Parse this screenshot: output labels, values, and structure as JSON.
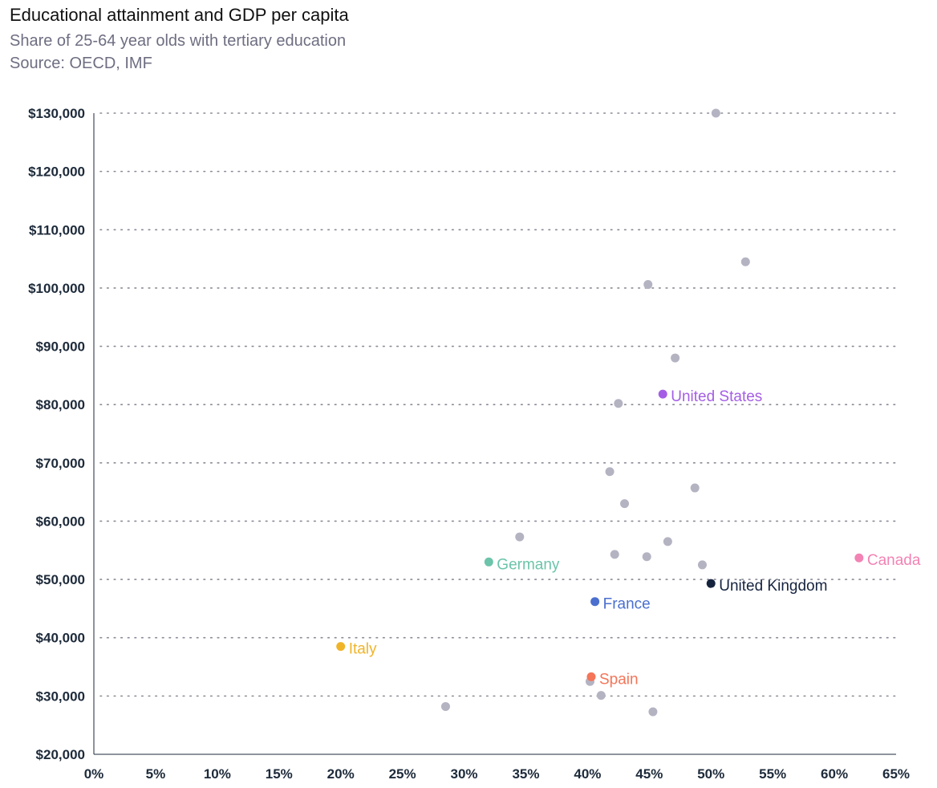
{
  "chart_data": {
    "type": "scatter",
    "title": "Educational attainment and GDP per capita",
    "subtitle": "Share of 25-64 year olds with tertiary education",
    "source": "Source: OECD, IMF",
    "xlim": [
      0,
      65
    ],
    "ylim": [
      20000,
      130000
    ],
    "x_ticks": [
      "0%",
      "5%",
      "10%",
      "15%",
      "20%",
      "25%",
      "30%",
      "35%",
      "40%",
      "45%",
      "50%",
      "55%",
      "60%",
      "65%"
    ],
    "y_ticks": [
      "$20,000",
      "$30,000",
      "$40,000",
      "$50,000",
      "$60,000",
      "$70,000",
      "$80,000",
      "$90,000",
      "$100,000",
      "$110,000",
      "$120,000",
      "$130,000"
    ],
    "grid": "horizontal-dotted",
    "default_color": "#b4b3c2",
    "highlighted": [
      {
        "label": "United States",
        "x": 46.1,
        "y": 81800,
        "color": "#a45ee5"
      },
      {
        "label": "Germany",
        "x": 32.0,
        "y": 53000,
        "color": "#6cc4aa"
      },
      {
        "label": "Canada",
        "x": 62.0,
        "y": 53700,
        "color": "#f283b4"
      },
      {
        "label": "United Kingdom",
        "x": 50.0,
        "y": 49300,
        "color": "#15233f"
      },
      {
        "label": "France",
        "x": 40.6,
        "y": 46200,
        "color": "#4a6fcf"
      },
      {
        "label": "Italy",
        "x": 20.0,
        "y": 38500,
        "color": "#f0b429"
      },
      {
        "label": "Spain",
        "x": 40.3,
        "y": 33300,
        "color": "#f47558"
      }
    ],
    "other_points": [
      {
        "x": 50.4,
        "y": 130000
      },
      {
        "x": 52.8,
        "y": 104500
      },
      {
        "x": 44.9,
        "y": 100600
      },
      {
        "x": 47.1,
        "y": 88000
      },
      {
        "x": 42.5,
        "y": 80200
      },
      {
        "x": 41.8,
        "y": 68500
      },
      {
        "x": 48.7,
        "y": 65700
      },
      {
        "x": 43.0,
        "y": 63000
      },
      {
        "x": 34.5,
        "y": 57300
      },
      {
        "x": 46.5,
        "y": 56500
      },
      {
        "x": 42.2,
        "y": 54300
      },
      {
        "x": 44.8,
        "y": 53900
      },
      {
        "x": 49.3,
        "y": 52500
      },
      {
        "x": 40.2,
        "y": 32500
      },
      {
        "x": 41.1,
        "y": 30100
      },
      {
        "x": 28.5,
        "y": 28200
      },
      {
        "x": 45.3,
        "y": 27300
      }
    ]
  }
}
